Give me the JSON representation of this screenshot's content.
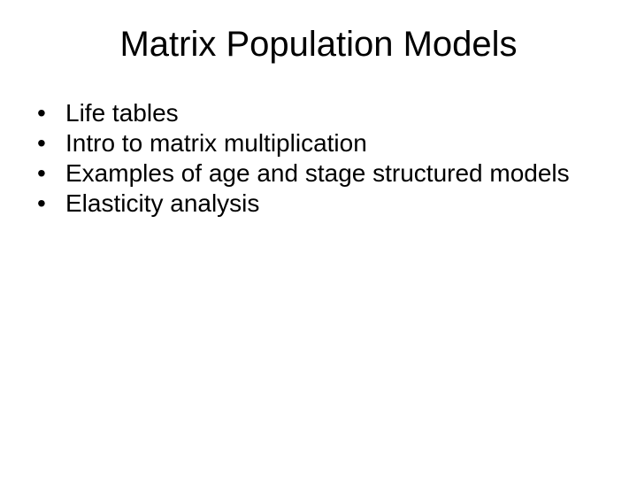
{
  "slide": {
    "title": "Matrix Population Models",
    "title_fontsize": 40,
    "body_fontsize": 28,
    "text_color": "#000000",
    "background_color": "#ffffff",
    "bullets": [
      "Life tables",
      "Intro to matrix multiplication",
      "Examples of age and stage structured models",
      "Elasticity analysis"
    ]
  }
}
